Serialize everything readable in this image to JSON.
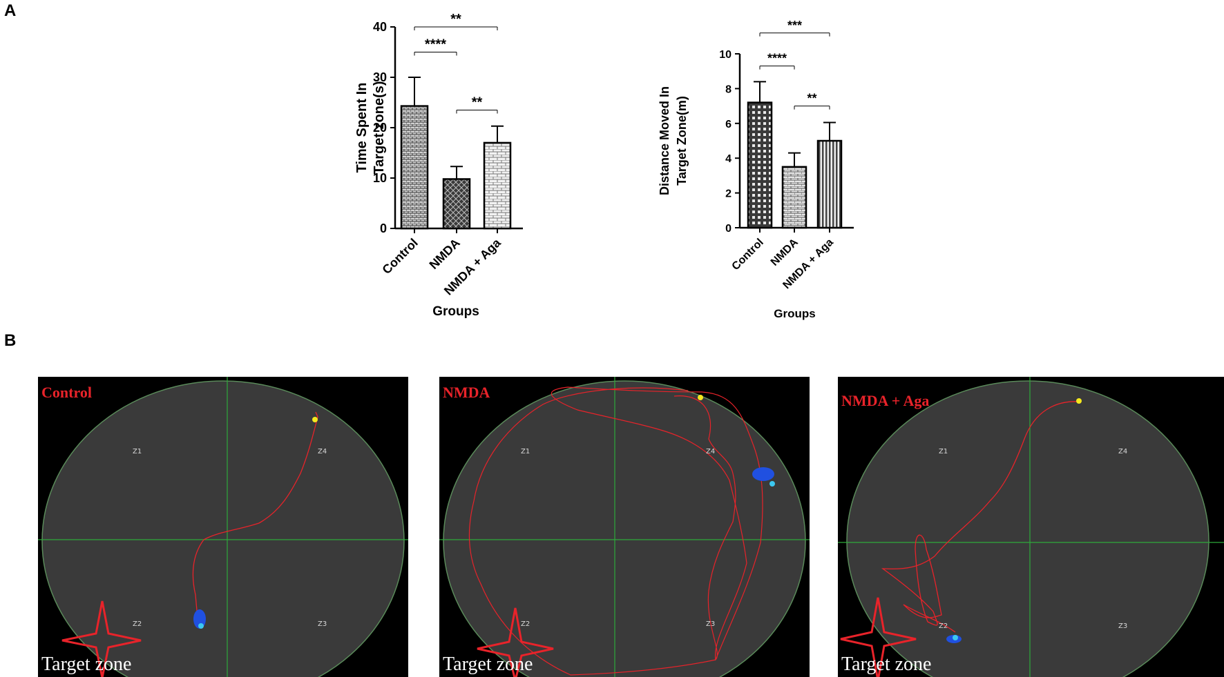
{
  "panel_labels": {
    "a": "A",
    "b": "B"
  },
  "chart_data": [
    {
      "type": "bar",
      "categories": [
        "Control",
        "NMDA",
        "NMDA + Aga"
      ],
      "values": [
        24.3,
        9.8,
        17.0
      ],
      "errors": [
        5.7,
        2.5,
        3.3
      ],
      "ylabel_lines": [
        "Time Spent In",
        "Target zone(s)"
      ],
      "xlabel": "Groups",
      "ylim": [
        0,
        40
      ],
      "yticks": [
        0,
        10,
        20,
        30,
        40
      ],
      "patterns": [
        "brick-dense",
        "diamond-dark",
        "brick-light"
      ],
      "significance": [
        {
          "from": 0,
          "to": 2,
          "y": 40,
          "label": "**"
        },
        {
          "from": 0,
          "to": 1,
          "y": 35,
          "label": "****"
        },
        {
          "from": 1,
          "to": 2,
          "y": 23.5,
          "label": "**"
        }
      ]
    },
    {
      "type": "bar",
      "categories": [
        "Control",
        "NMDA",
        "NMDA + Aga"
      ],
      "values": [
        7.2,
        3.5,
        5.0
      ],
      "errors": [
        1.2,
        0.8,
        1.05
      ],
      "ylabel_lines": [
        "Distance Moved In",
        "Target Zone(m)"
      ],
      "xlabel": "Groups",
      "ylim": [
        0,
        10
      ],
      "yticks": [
        0,
        2,
        4,
        6,
        8,
        10
      ],
      "patterns": [
        "checker",
        "brick-small",
        "vertical-stripes"
      ],
      "significance": [
        {
          "from": 0,
          "to": 2,
          "y": 11.2,
          "label": "***"
        },
        {
          "from": 0,
          "to": 1,
          "y": 9.3,
          "label": "****"
        },
        {
          "from": 1,
          "to": 2,
          "y": 7.0,
          "label": "**"
        }
      ]
    }
  ],
  "track_panels": [
    {
      "title": "Control",
      "zones": [
        "Z1",
        "Z4",
        "Z2",
        "Z3"
      ],
      "target_label": "Target zone"
    },
    {
      "title": "NMDA",
      "zones": [
        "Z1",
        "Z4",
        "Z2",
        "Z3"
      ],
      "target_label": "Target zone"
    },
    {
      "title": "NMDA + Aga",
      "zones": [
        "Z1",
        "Z4",
        "Z2",
        "Z3"
      ],
      "target_label": "Target zone"
    }
  ],
  "colors": {
    "track_path": "#e8232a",
    "target_star": "#e8232a",
    "grid_lines": "#2eaa3a",
    "pool_edge": "#5a8a5a",
    "end_point": "#3cc8f0",
    "start_point": "#f5e81e",
    "dwell_blob": "#2050e0",
    "title_red": "#e8232a"
  }
}
